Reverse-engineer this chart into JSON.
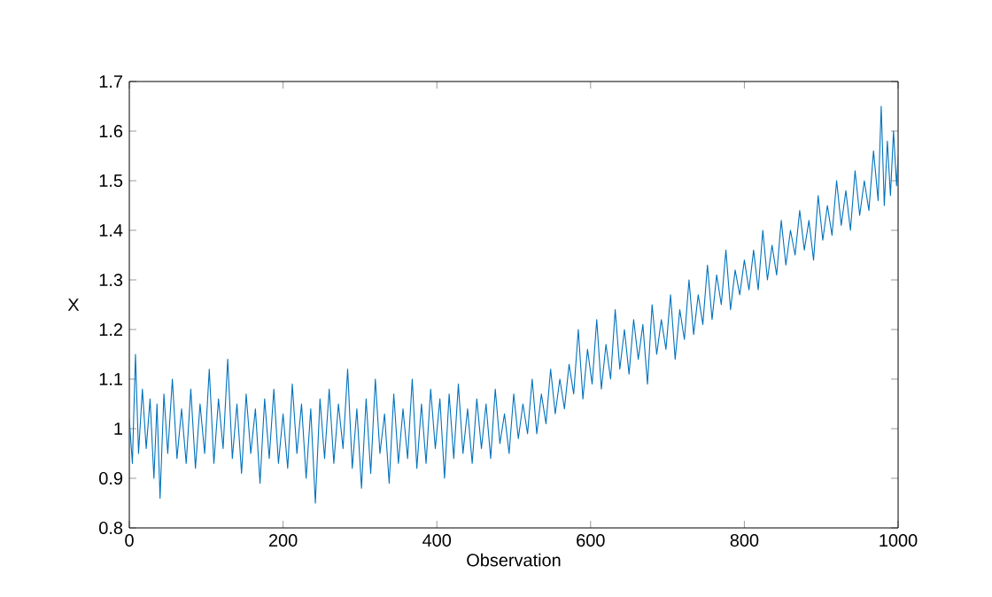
{
  "chart_data": {
    "type": "line",
    "xlabel": "Observation",
    "ylabel": "X",
    "xlim": [
      0,
      1000
    ],
    "ylim": [
      0.8,
      1.7
    ],
    "xticks": [
      0,
      200,
      400,
      600,
      800,
      1000
    ],
    "yticks": [
      0.8,
      0.9,
      1,
      1.1,
      1.2,
      1.3,
      1.4,
      1.5,
      1.6,
      1.7
    ],
    "series": [
      {
        "color": "#0072bd",
        "x": [
          0,
          4,
          8,
          12,
          17,
          22,
          27,
          32,
          36,
          40,
          45,
          50,
          56,
          62,
          68,
          74,
          80,
          86,
          92,
          98,
          104,
          110,
          116,
          122,
          128,
          134,
          140,
          146,
          152,
          158,
          164,
          170,
          176,
          182,
          188,
          194,
          200,
          206,
          212,
          218,
          224,
          230,
          236,
          242,
          248,
          254,
          260,
          266,
          272,
          278,
          284,
          290,
          296,
          302,
          308,
          314,
          320,
          326,
          332,
          338,
          344,
          350,
          356,
          362,
          368,
          374,
          380,
          386,
          392,
          398,
          404,
          410,
          416,
          422,
          428,
          434,
          440,
          446,
          452,
          458,
          464,
          470,
          476,
          482,
          488,
          494,
          500,
          506,
          512,
          518,
          524,
          530,
          536,
          542,
          548,
          554,
          560,
          566,
          572,
          578,
          584,
          590,
          596,
          602,
          608,
          614,
          620,
          626,
          632,
          638,
          644,
          650,
          656,
          662,
          668,
          674,
          680,
          686,
          692,
          698,
          704,
          710,
          716,
          722,
          728,
          734,
          740,
          746,
          752,
          758,
          764,
          770,
          776,
          782,
          788,
          794,
          800,
          806,
          812,
          818,
          824,
          830,
          836,
          842,
          848,
          854,
          860,
          866,
          872,
          878,
          884,
          890,
          896,
          902,
          908,
          914,
          920,
          926,
          932,
          938,
          944,
          950,
          956,
          962,
          968,
          974,
          978,
          982,
          986,
          990,
          994,
          998,
          1000
        ],
        "values": [
          1.02,
          0.93,
          1.15,
          0.95,
          1.08,
          0.96,
          1.06,
          0.9,
          1.05,
          0.86,
          1.07,
          0.95,
          1.1,
          0.94,
          1.04,
          0.93,
          1.08,
          0.92,
          1.05,
          0.95,
          1.12,
          0.93,
          1.06,
          0.96,
          1.14,
          0.94,
          1.05,
          0.91,
          1.07,
          0.95,
          1.04,
          0.89,
          1.06,
          0.94,
          1.08,
          0.93,
          1.03,
          0.92,
          1.09,
          0.95,
          1.05,
          0.9,
          1.04,
          0.85,
          1.06,
          0.94,
          1.08,
          0.93,
          1.05,
          0.96,
          1.12,
          0.92,
          1.04,
          0.88,
          1.06,
          0.91,
          1.1,
          0.95,
          1.03,
          0.89,
          1.07,
          0.93,
          1.04,
          0.94,
          1.1,
          0.92,
          1.05,
          0.93,
          1.08,
          0.96,
          1.06,
          0.9,
          1.07,
          0.94,
          1.09,
          0.95,
          1.04,
          0.93,
          1.06,
          0.96,
          1.05,
          0.94,
          1.08,
          0.97,
          1.03,
          0.95,
          1.07,
          0.98,
          1.05,
          0.99,
          1.1,
          0.99,
          1.07,
          1.01,
          1.12,
          1.03,
          1.1,
          1.04,
          1.13,
          1.07,
          1.2,
          1.06,
          1.16,
          1.09,
          1.22,
          1.08,
          1.17,
          1.1,
          1.24,
          1.12,
          1.2,
          1.11,
          1.22,
          1.14,
          1.21,
          1.09,
          1.25,
          1.15,
          1.22,
          1.16,
          1.27,
          1.14,
          1.24,
          1.18,
          1.3,
          1.19,
          1.27,
          1.21,
          1.33,
          1.22,
          1.31,
          1.25,
          1.36,
          1.24,
          1.32,
          1.27,
          1.34,
          1.28,
          1.36,
          1.28,
          1.4,
          1.3,
          1.37,
          1.31,
          1.42,
          1.33,
          1.4,
          1.35,
          1.44,
          1.36,
          1.42,
          1.34,
          1.47,
          1.38,
          1.45,
          1.39,
          1.5,
          1.41,
          1.48,
          1.4,
          1.52,
          1.43,
          1.5,
          1.44,
          1.56,
          1.46,
          1.65,
          1.45,
          1.58,
          1.47,
          1.6,
          1.49,
          1.55
        ]
      }
    ]
  }
}
